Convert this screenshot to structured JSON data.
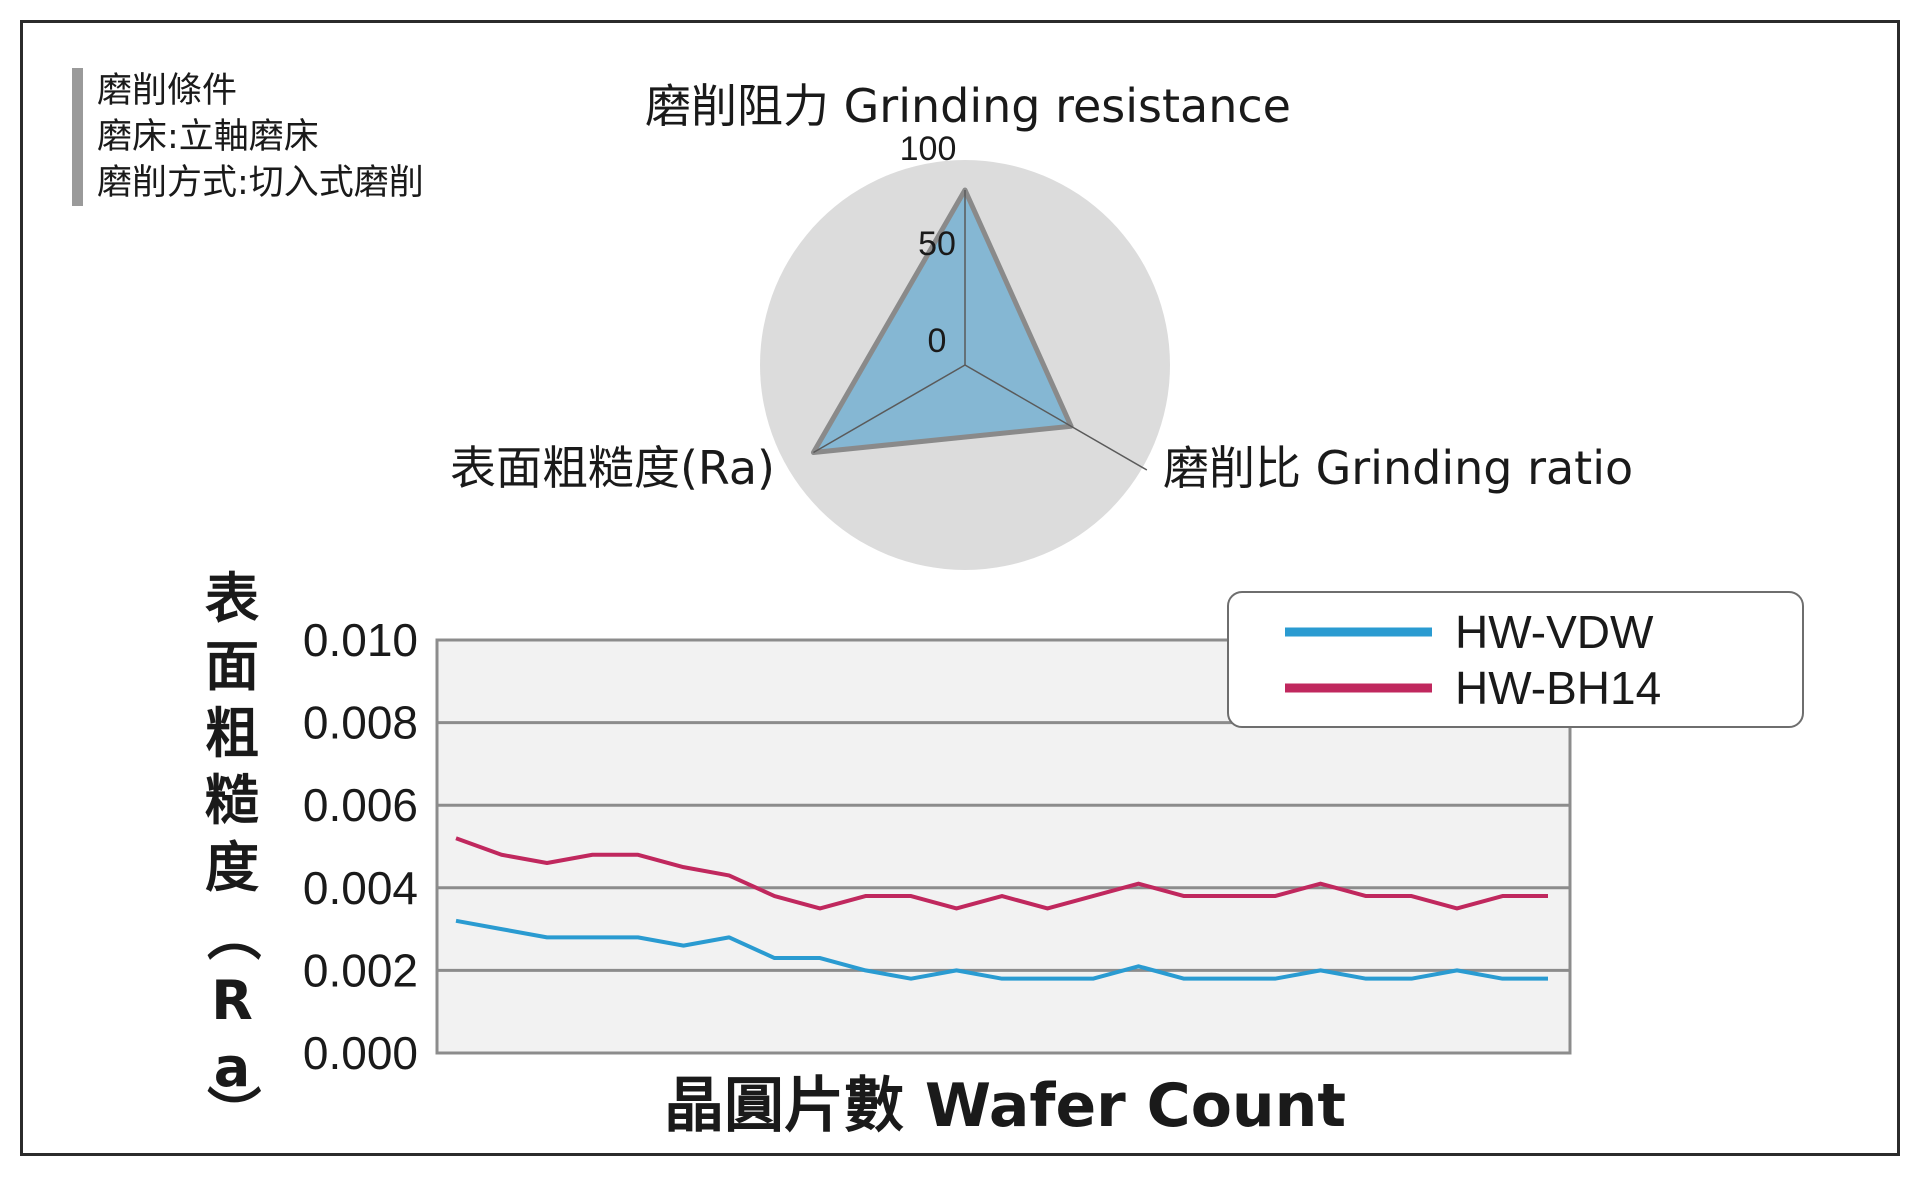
{
  "conditions": {
    "title": "磨削條件",
    "machine": "磨床:立軸磨床",
    "method": "磨削方式:切入式磨削"
  },
  "chart_data": [
    {
      "type": "radar",
      "title": "",
      "axes": [
        "磨削阻力 Grinding resistance",
        "磨削比 Grinding ratio",
        "表面粗糙度(Ra)"
      ],
      "scale": {
        "min": 0,
        "max": 100,
        "ticks": [
          "100",
          "50",
          "0"
        ]
      },
      "values": [
        100,
        70,
        100
      ],
      "colors": {
        "fill": "#7fb4d2",
        "stroke": "#8a8a8a",
        "background": "#dcdcdc"
      }
    },
    {
      "type": "line",
      "title": "",
      "xlabel": "晶圓片數 Wafer Count",
      "ylabel": "表面粗糙度（Ra）",
      "ylabel_chars": [
        "表",
        "面",
        "粗",
        "糙",
        "度",
        "（",
        "R",
        "a",
        "）"
      ],
      "ylim": [
        0,
        0.01
      ],
      "yticks": [
        {
          "value": 0,
          "label": "0.000"
        },
        {
          "value": 0.002,
          "label": "0.002"
        },
        {
          "value": 0.004,
          "label": "0.004"
        },
        {
          "value": 0.006,
          "label": "0.006"
        },
        {
          "value": 0.008,
          "label": "0.008"
        },
        {
          "value": 0.01,
          "label": "0.010"
        }
      ],
      "grid": true,
      "legend": "top-right",
      "series": [
        {
          "name": "HW-VDW",
          "color": "#2a9bd1",
          "values": [
            0.0032,
            0.003,
            0.0028,
            0.0028,
            0.0028,
            0.0026,
            0.0028,
            0.0023,
            0.0023,
            0.002,
            0.0018,
            0.002,
            0.0018,
            0.0018,
            0.0018,
            0.0021,
            0.0018,
            0.0018,
            0.0018,
            0.002,
            0.0018,
            0.0018,
            0.002,
            0.0018,
            0.0018
          ]
        },
        {
          "name": "HW-BH14",
          "color": "#c0285e",
          "values": [
            0.0052,
            0.0048,
            0.0046,
            0.0048,
            0.0048,
            0.0045,
            0.0043,
            0.0038,
            0.0035,
            0.0038,
            0.0038,
            0.0035,
            0.0038,
            0.0035,
            0.0038,
            0.0041,
            0.0038,
            0.0038,
            0.0038,
            0.0041,
            0.0038,
            0.0038,
            0.0035,
            0.0038,
            0.0038
          ]
        }
      ]
    }
  ]
}
